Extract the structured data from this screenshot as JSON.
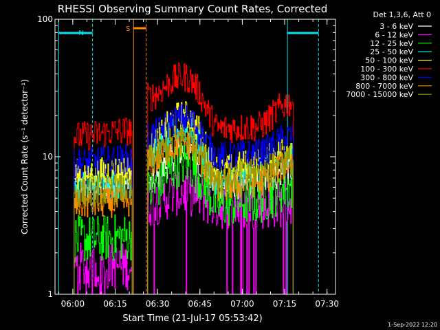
{
  "chart_data": {
    "type": "line",
    "title": "RHESSI Observing Summary Count Rates, Corrected",
    "xlabel": "Start Time (21-Jul-17 05:53:42)",
    "ylabel": "Corrected Count Rate (s⁻¹ detector⁻¹)",
    "y_scale": "log",
    "ylim": [
      1,
      100
    ],
    "xlim": [
      "05:53:42",
      "07:33:00"
    ],
    "x_ticks": [
      "06:00",
      "06:15",
      "06:30",
      "06:45",
      "07:00",
      "07:15",
      "07:30"
    ],
    "y_ticks": [
      "1",
      "10",
      "100"
    ],
    "legend_title": "Det 1,3,6, Att 0",
    "legend_placement": "right, outside plot",
    "timestamp": "1-Sep-2022 12:20",
    "colors": {
      "background": "#000000",
      "axes": "#ffffff",
      "night": "#00e5ee",
      "saa": "#ff8c00"
    },
    "night_label": "N",
    "saa_label": "S",
    "night_intervals": [
      [
        "05:55:00",
        "06:07:00"
      ],
      [
        "07:16:00",
        "07:27:00"
      ]
    ],
    "saa_intervals": [
      [
        "06:21:30",
        "06:26:00"
      ]
    ],
    "segments": [
      [
        "06:00:30",
        "06:21:00"
      ],
      [
        "06:26:30",
        "07:18:00"
      ]
    ],
    "series": [
      {
        "name": "3 - 6 keV",
        "color": "#ffffff",
        "values": [
          [
            6.0,
            6.5
          ],
          [
            6.0,
            11.0,
            6.0,
            6.5,
            8.0
          ]
        ]
      },
      {
        "name": "6 - 12 keV",
        "color": "#ff00ff",
        "values": [
          [
            1.6,
            1.6
          ],
          [
            4.6,
            5.6,
            4.4,
            4.4,
            4.6
          ]
        ]
      },
      {
        "name": "12 - 25 keV",
        "color": "#00ff00",
        "values": [
          [
            2.5,
            2.6
          ],
          [
            5.5,
            9.0,
            4.5,
            4.8,
            6.0
          ]
        ]
      },
      {
        "name": "25 - 50 keV",
        "color": "#00ffff",
        "values": [
          [
            6.2,
            6.4
          ],
          [
            10.0,
            16.0,
            6.5,
            7.5,
            10.0
          ]
        ]
      },
      {
        "name": "50 - 100 keV",
        "color": "#ffff00",
        "values": [
          [
            7.5,
            8.0
          ],
          [
            12.0,
            20.0,
            8.0,
            9.0,
            12.0
          ]
        ]
      },
      {
        "name": "100 - 300 keV",
        "color": "#ff0000",
        "values": [
          [
            14.0,
            15.5
          ],
          [
            27.0,
            38.0,
            16.0,
            16.5,
            25.0
          ]
        ]
      },
      {
        "name": "300 - 800 keV",
        "color": "#0000ff",
        "values": [
          [
            9.0,
            9.6
          ],
          [
            14.0,
            19.0,
            10.0,
            10.5,
            14.0
          ]
        ]
      },
      {
        "name": "800 - 7000 keV",
        "color": "#ff8c00",
        "values": [
          [
            4.5,
            4.7
          ],
          [
            9.0,
            12.5,
            6.0,
            6.5,
            9.0
          ]
        ]
      },
      {
        "name": "7000 - 15000 keV",
        "color": "#999900",
        "values": [
          [
            5.5,
            5.8
          ],
          [
            9.5,
            14.0,
            7.0,
            7.5,
            9.5
          ]
        ]
      }
    ]
  }
}
